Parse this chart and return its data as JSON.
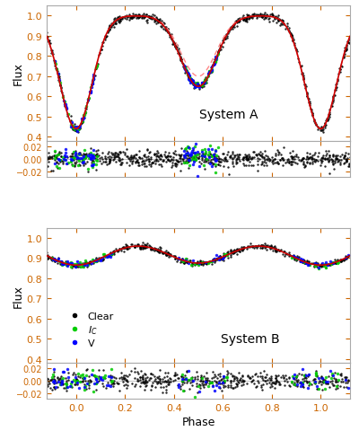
{
  "xlabel": "Phase",
  "ylabel": "Flux",
  "label_A": "System A",
  "label_B": "System B",
  "legend_labels": [
    "Clear",
    "I_C",
    "V"
  ],
  "legend_colors": [
    "black",
    "#00cc00",
    "blue"
  ],
  "phase_min": -0.12,
  "phase_max": 1.12,
  "flux_A_min": 0.38,
  "flux_A_max": 1.05,
  "flux_B_min": 0.38,
  "flux_B_max": 1.05,
  "resid_min": -0.028,
  "resid_max": 0.028,
  "bg_color": "white",
  "model_color_solid": "#cc0000",
  "model_color_dashed": "#ff8888",
  "tick_color": "#cc6600",
  "scatter_size_black": 3,
  "scatter_size_color": 6
}
